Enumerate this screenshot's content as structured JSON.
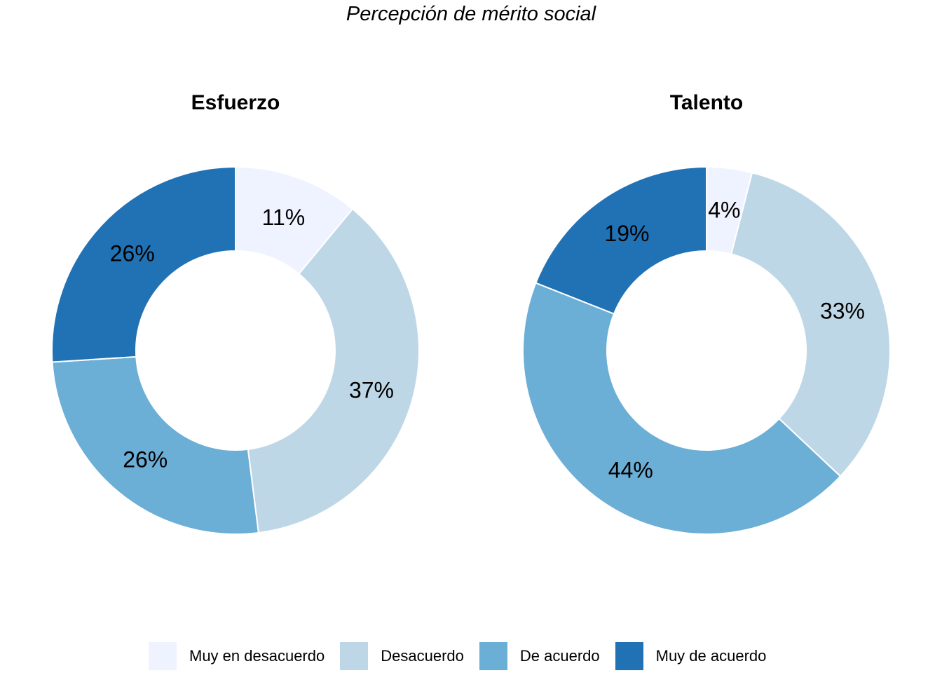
{
  "title": "Percepción de mérito social",
  "legend": [
    {
      "label": "Muy en desacuerdo",
      "color": "#EFF3FF"
    },
    {
      "label": "Desacuerdo",
      "color": "#BDD7E7"
    },
    {
      "label": "De acuerdo",
      "color": "#6BAED6"
    },
    {
      "label": "Muy de acuerdo",
      "color": "#2171B5"
    }
  ],
  "chart_data": [
    {
      "type": "pie",
      "subtype": "donut",
      "title": "Esfuerzo",
      "categories": [
        "Muy en desacuerdo",
        "Desacuerdo",
        "De acuerdo",
        "Muy de acuerdo"
      ],
      "values": [
        11,
        37,
        26,
        26
      ],
      "labels": [
        "11%",
        "37%",
        "26%",
        "26%"
      ],
      "unit": "%",
      "direction": "clockwise from top"
    },
    {
      "type": "pie",
      "subtype": "donut",
      "title": "Talento",
      "categories": [
        "Muy en desacuerdo",
        "Desacuerdo",
        "De acuerdo",
        "Muy de acuerdo"
      ],
      "values": [
        4,
        33,
        44,
        19
      ],
      "labels": [
        "4%",
        "33%",
        "44%",
        "19%"
      ],
      "unit": "%",
      "direction": "clockwise from top"
    }
  ]
}
